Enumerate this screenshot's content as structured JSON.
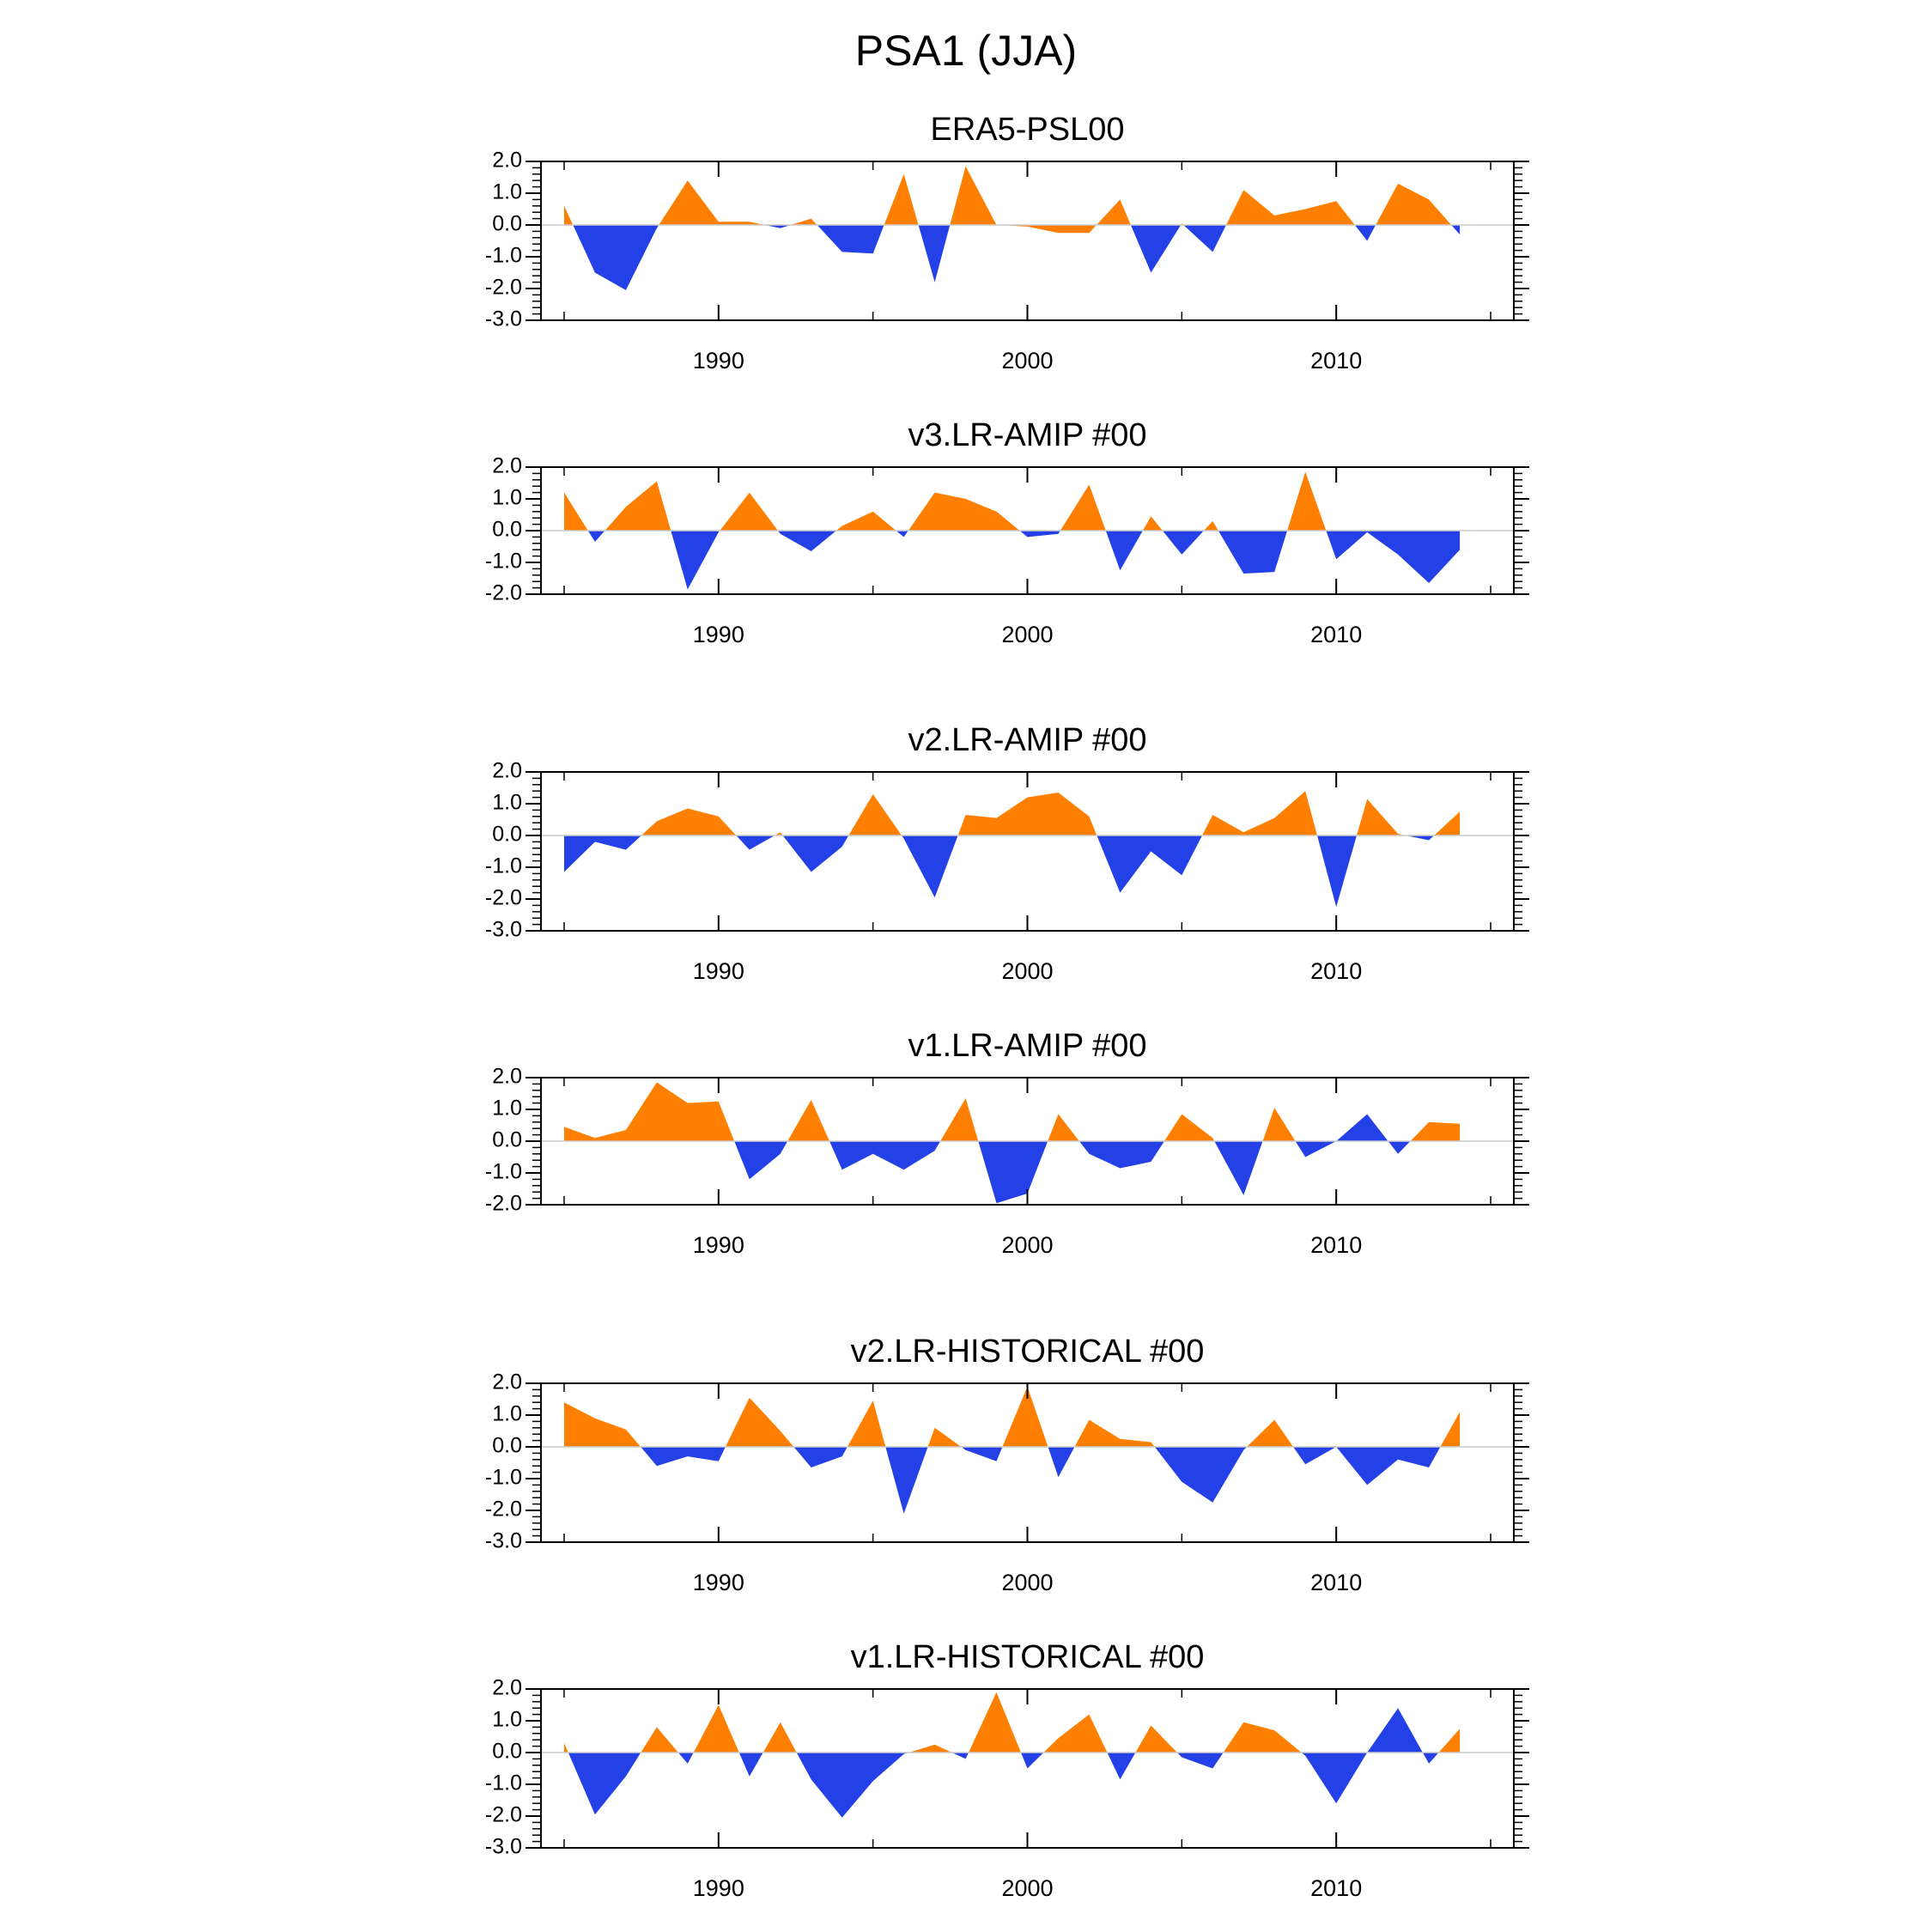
{
  "figure": {
    "title": "PSA1 (JJA)"
  },
  "colors": {
    "positive": "#ff8000",
    "negative": "#2441e8",
    "frame": "#000000",
    "zero_line": "#cccccc"
  },
  "chart_data": [
    {
      "type": "area",
      "title": "ERA5-PSL00",
      "x": [
        1985,
        1986,
        1987,
        1988,
        1989,
        1990,
        1991,
        1992,
        1993,
        1994,
        1995,
        1996,
        1997,
        1998,
        1999,
        2000,
        2001,
        2002,
        2003,
        2004,
        2005,
        2006,
        2007,
        2008,
        2009,
        2010,
        2011,
        2012,
        2013,
        2014
      ],
      "values": [
        0.6,
        -1.5,
        -2.05,
        -0.1,
        1.4,
        0.1,
        0.1,
        -0.1,
        0.2,
        -0.85,
        -0.9,
        1.6,
        -1.8,
        1.85,
        0.0,
        -0.05,
        -0.25,
        -0.25,
        0.8,
        -1.5,
        0.05,
        -0.85,
        1.1,
        0.3,
        0.5,
        0.75,
        -0.5,
        1.3,
        0.8,
        -0.3
      ],
      "ylim": [
        -3.0,
        2.0
      ],
      "yticks": [
        2.0,
        1.0,
        0.0,
        -1.0,
        -2.0,
        -3.0
      ],
      "ytick_labels": [
        "2.0",
        "1.0",
        "0.0",
        "-1.0",
        "-2.0",
        "-3.0"
      ],
      "xticks": [
        1990,
        2000,
        2010
      ],
      "xtick_labels": [
        "1990",
        "2000",
        "2010"
      ]
    },
    {
      "type": "area",
      "title": "v3.LR-AMIP  #00",
      "x": [
        1985,
        1986,
        1987,
        1988,
        1989,
        1990,
        1991,
        1992,
        1993,
        1994,
        1995,
        1996,
        1997,
        1998,
        1999,
        2000,
        2001,
        2002,
        2003,
        2004,
        2005,
        2006,
        2007,
        2008,
        2009,
        2010,
        2011,
        2012,
        2013,
        2014
      ],
      "values": [
        1.2,
        -0.35,
        0.75,
        1.55,
        -1.85,
        -0.05,
        1.2,
        -0.1,
        -0.65,
        0.15,
        0.6,
        -0.2,
        1.2,
        1.0,
        0.6,
        -0.2,
        -0.1,
        1.45,
        -1.25,
        0.45,
        -0.75,
        0.3,
        -1.35,
        -1.3,
        1.85,
        -0.9,
        -0.05,
        -0.75,
        -1.65,
        -0.6
      ],
      "ylim": [
        -2.0,
        2.0
      ],
      "yticks": [
        2.0,
        1.0,
        0.0,
        -1.0,
        -2.0
      ],
      "ytick_labels": [
        "2.0",
        "1.0",
        "0.0",
        "-1.0",
        "-2.0"
      ],
      "xticks": [
        1990,
        2000,
        2010
      ],
      "xtick_labels": [
        "1990",
        "2000",
        "2010"
      ]
    },
    {
      "type": "area",
      "title": "v2.LR-AMIP  #00",
      "x": [
        1985,
        1986,
        1987,
        1988,
        1989,
        1990,
        1991,
        1992,
        1993,
        1994,
        1995,
        1996,
        1997,
        1998,
        1999,
        2000,
        2001,
        2002,
        2003,
        2004,
        2005,
        2006,
        2007,
        2008,
        2009,
        2010,
        2011,
        2012,
        2013,
        2014
      ],
      "values": [
        -1.15,
        -0.2,
        -0.45,
        0.45,
        0.85,
        0.6,
        -0.45,
        0.1,
        -1.15,
        -0.35,
        1.3,
        -0.1,
        -1.95,
        0.65,
        0.55,
        1.2,
        1.35,
        0.6,
        -1.8,
        -0.5,
        -1.25,
        0.65,
        0.1,
        0.55,
        1.4,
        -2.25,
        1.15,
        0.05,
        -0.15,
        0.75
      ],
      "ylim": [
        -3.0,
        2.0
      ],
      "yticks": [
        2.0,
        1.0,
        0.0,
        -1.0,
        -2.0,
        -3.0
      ],
      "ytick_labels": [
        "2.0",
        "1.0",
        "0.0",
        "-1.0",
        "-2.0",
        "-3.0"
      ],
      "xticks": [
        1990,
        2000,
        2010
      ],
      "xtick_labels": [
        "1990",
        "2000",
        "2010"
      ]
    },
    {
      "type": "area",
      "title": "v1.LR-AMIP  #00",
      "x": [
        1985,
        1986,
        1987,
        1988,
        1989,
        1990,
        1991,
        1992,
        1993,
        1994,
        1995,
        1996,
        1997,
        1998,
        1999,
        2000,
        2001,
        2002,
        2003,
        2004,
        2005,
        2006,
        2007,
        2008,
        2009,
        2010,
        2011,
        2012,
        2013,
        2014
      ],
      "values": [
        0.45,
        0.1,
        0.35,
        1.85,
        1.2,
        1.25,
        -1.2,
        -0.4,
        1.3,
        -0.9,
        -0.4,
        -0.9,
        -0.3,
        1.35,
        -1.95,
        -1.65,
        0.85,
        -0.4,
        -0.85,
        -0.65,
        0.85,
        0.1,
        -1.7,
        1.05,
        -0.5,
        0.0,
        0.85,
        -0.4,
        0.6,
        0.55
      ],
      "ylim": [
        -2.0,
        2.0
      ],
      "yticks": [
        2.0,
        1.0,
        0.0,
        -1.0,
        -2.0
      ],
      "ytick_labels": [
        "2.0",
        "1.0",
        "0.0",
        "-1.0",
        "-2.0"
      ],
      "xticks": [
        1990,
        2000,
        2010
      ],
      "xtick_labels": [
        "1990",
        "2000",
        "2010"
      ]
    },
    {
      "type": "area",
      "title": "v2.LR-HISTORICAL  #00",
      "x": [
        1985,
        1986,
        1987,
        1988,
        1989,
        1990,
        1991,
        1992,
        1993,
        1994,
        1995,
        1996,
        1997,
        1998,
        1999,
        2000,
        2001,
        2002,
        2003,
        2004,
        2005,
        2006,
        2007,
        2008,
        2009,
        2010,
        2011,
        2012,
        2013,
        2014
      ],
      "values": [
        1.4,
        0.9,
        0.55,
        -0.6,
        -0.3,
        -0.45,
        1.55,
        0.5,
        -0.65,
        -0.3,
        1.45,
        -2.1,
        0.6,
        -0.1,
        -0.45,
        1.9,
        -0.95,
        0.85,
        0.25,
        0.15,
        -1.1,
        -1.75,
        -0.1,
        0.85,
        -0.55,
        0.0,
        -1.2,
        -0.4,
        -0.65,
        1.1
      ],
      "ylim": [
        -3.0,
        2.0
      ],
      "yticks": [
        2.0,
        1.0,
        0.0,
        -1.0,
        -2.0,
        -3.0
      ],
      "ytick_labels": [
        "2.0",
        "1.0",
        "0.0",
        "-1.0",
        "-2.0",
        "-3.0"
      ],
      "xticks": [
        1990,
        2000,
        2010
      ],
      "xtick_labels": [
        "1990",
        "2000",
        "2010"
      ]
    },
    {
      "type": "area",
      "title": "v1.LR-HISTORICAL  #00",
      "x": [
        1985,
        1986,
        1987,
        1988,
        1989,
        1990,
        1991,
        1992,
        1993,
        1994,
        1995,
        1996,
        1997,
        1998,
        1999,
        2000,
        2001,
        2002,
        2003,
        2004,
        2005,
        2006,
        2007,
        2008,
        2009,
        2010,
        2011,
        2012,
        2013,
        2014
      ],
      "values": [
        0.3,
        -1.95,
        -0.75,
        0.8,
        -0.35,
        1.5,
        -0.75,
        0.95,
        -0.85,
        -2.05,
        -0.9,
        -0.05,
        0.25,
        -0.2,
        1.9,
        -0.5,
        0.45,
        1.2,
        -0.85,
        0.85,
        -0.15,
        -0.5,
        0.95,
        0.7,
        -0.1,
        -1.6,
        0.0,
        1.4,
        -0.35,
        0.75
      ],
      "ylim": [
        -3.0,
        2.0
      ],
      "yticks": [
        2.0,
        1.0,
        0.0,
        -1.0,
        -2.0,
        -3.0
      ],
      "ytick_labels": [
        "2.0",
        "1.0",
        "0.0",
        "-1.0",
        "-2.0",
        "-3.0"
      ],
      "xticks": [
        1990,
        2000,
        2010
      ],
      "xtick_labels": [
        "1990",
        "2000",
        "2010"
      ]
    }
  ]
}
